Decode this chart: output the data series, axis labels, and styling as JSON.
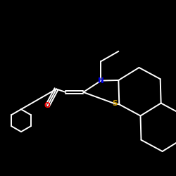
{
  "bg_color": "#000000",
  "bond_color": "#ffffff",
  "N_color": "#0000ee",
  "S_color": "#cc9900",
  "O_color": "#ff0000",
  "lw": 1.4,
  "fs": 7.5,
  "xlim": [
    -2.6,
    2.1
  ],
  "ylim": [
    -2.0,
    2.2
  ]
}
